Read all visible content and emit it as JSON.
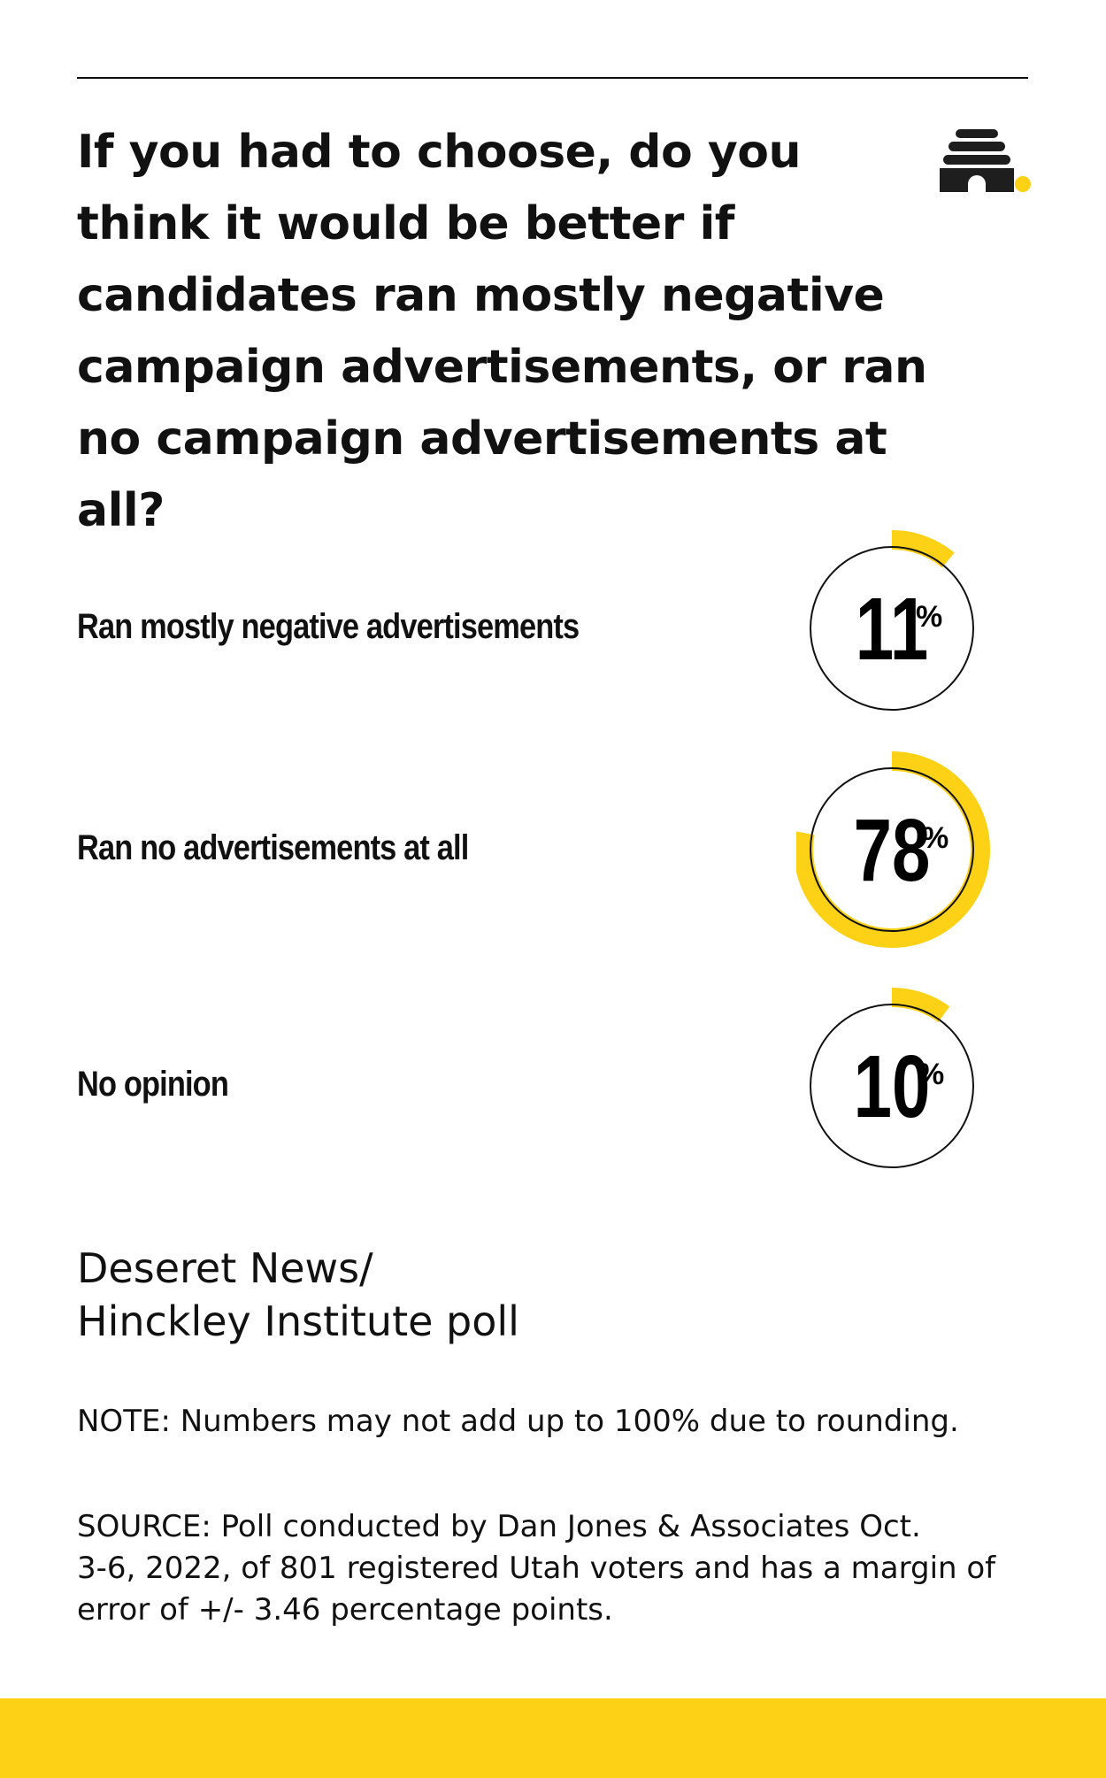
{
  "headline": {
    "lines": [
      "If you had to choose, do you",
      "think it would be better if",
      "candidates ran mostly negative",
      "campaign advertisements, or ran",
      "no campaign advertisements at all?"
    ]
  },
  "logo": {
    "icon": "beehive-icon"
  },
  "colors": {
    "accent": "#fcd116",
    "ink": "#111111",
    "background": "#ffffff"
  },
  "chart_data": {
    "type": "donut",
    "title": "If you had to choose, do you think it would be better if candidates ran mostly negative campaign advertisements, or ran no campaign advertisements at all?",
    "unit": "%",
    "categories": [
      "Ran mostly negative advertisements",
      "Ran no advertisements at all",
      "No opinion"
    ],
    "values": [
      11,
      78,
      10
    ],
    "value_labels": [
      "11",
      "78",
      "10"
    ],
    "percent_sign": "%",
    "ylim": [
      0,
      100
    ]
  },
  "footer": {
    "source_title_lines": [
      "Deseret News/",
      "Hinckley Institute poll"
    ],
    "note": "NOTE: Numbers may not add up to 100% due to rounding.",
    "source_lines": [
      "SOURCE: Poll conducted by Dan Jones & Associates Oct.",
      "3-6, 2022, of 801 registered Utah voters and has a margin of",
      "error of +/- 3.46 percentage points."
    ]
  }
}
